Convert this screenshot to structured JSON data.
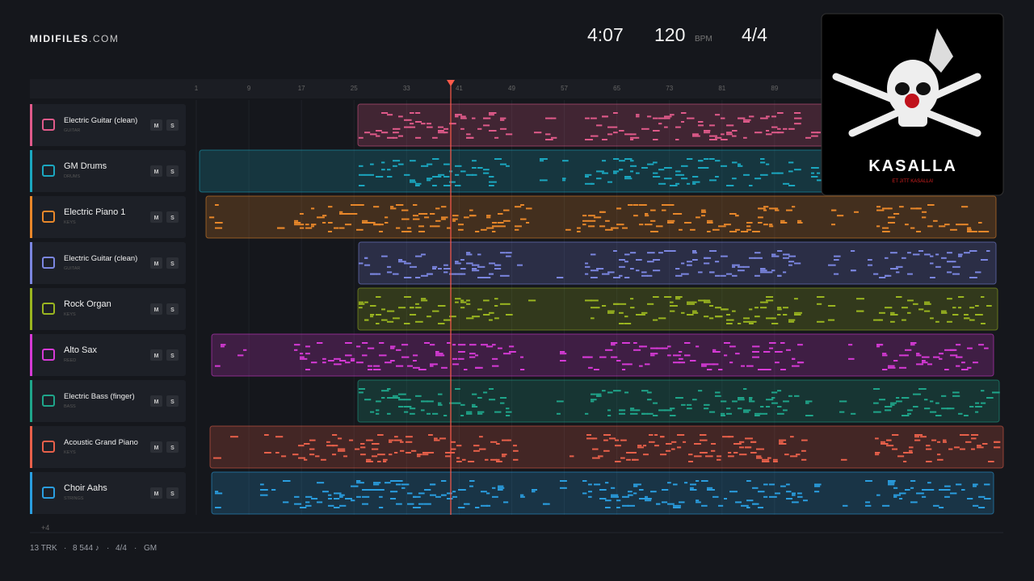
{
  "header": {
    "brand": "MIDIFILES",
    "brand_suffix": ".COM",
    "duration": "4:07",
    "tempo": "120",
    "tempo_unit": "BPM",
    "time_signature": "4/4"
  },
  "ruler": [
    1,
    9,
    17,
    25,
    33,
    41,
    49,
    57,
    65,
    73,
    81,
    89
  ],
  "buttons": {
    "mute": "M",
    "solo": "S"
  },
  "tracks": [
    {
      "name": "Electric Guitar (clean)",
      "category": "GUITAR",
      "color": "#e05a8a"
    },
    {
      "name": "GM Drums",
      "category": "DRUMS",
      "color": "#1ba7c0"
    },
    {
      "name": "Electric Piano 1",
      "category": "KEYS",
      "color": "#e8872a"
    },
    {
      "name": "Electric Guitar (clean)",
      "category": "GUITAR",
      "color": "#7b86e0"
    },
    {
      "name": "Rock Organ",
      "category": "KEYS",
      "color": "#9ab520"
    },
    {
      "name": "Alto Sax",
      "category": "REED",
      "color": "#d63ad6"
    },
    {
      "name": "Electric Bass (finger)",
      "category": "BASS",
      "color": "#1fa58a"
    },
    {
      "name": "Acoustic Grand Piano",
      "category": "KEYS",
      "color": "#e8604a"
    },
    {
      "name": "Choir Aahs",
      "category": "STRINGS",
      "color": "#2a9ee0"
    }
  ],
  "more_tracks": "+4",
  "footer": {
    "tracks": "13 TRK",
    "notes": "8 544 ♪",
    "time_signature": "4/4",
    "standard": "GM",
    "separator": "·"
  },
  "album": {
    "title": "KASALLA",
    "subtitle": "ET JITT KASALLA!"
  }
}
